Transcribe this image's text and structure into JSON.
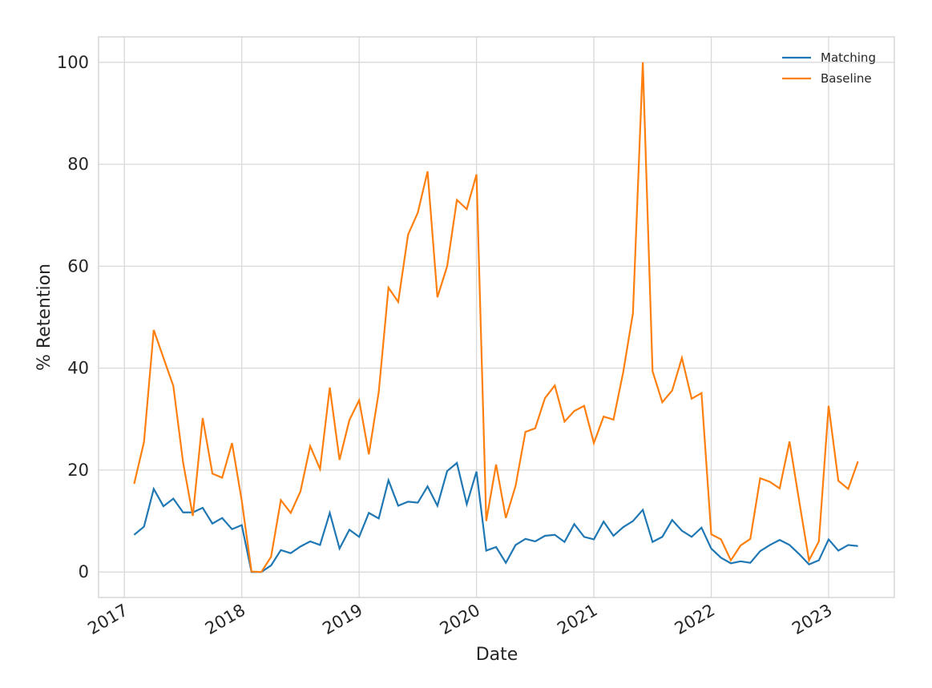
{
  "chart_data": {
    "type": "line",
    "x_label": "Date",
    "y_label": "% Retention",
    "x": [
      2017.083,
      2017.167,
      2017.25,
      2017.333,
      2017.417,
      2017.5,
      2017.583,
      2017.667,
      2017.75,
      2017.833,
      2017.917,
      2018.0,
      2018.083,
      2018.167,
      2018.25,
      2018.333,
      2018.417,
      2018.5,
      2018.583,
      2018.667,
      2018.75,
      2018.833,
      2018.917,
      2019.0,
      2019.083,
      2019.167,
      2019.25,
      2019.333,
      2019.417,
      2019.5,
      2019.583,
      2019.667,
      2019.75,
      2019.833,
      2019.917,
      2020.0,
      2020.083,
      2020.167,
      2020.25,
      2020.333,
      2020.417,
      2020.5,
      2020.583,
      2020.667,
      2020.75,
      2020.833,
      2020.917,
      2021.0,
      2021.083,
      2021.167,
      2021.25,
      2021.333,
      2021.417,
      2021.5,
      2021.583,
      2021.667,
      2021.75,
      2021.833,
      2021.917,
      2022.0,
      2022.083,
      2022.167,
      2022.25,
      2022.333,
      2022.417,
      2022.5,
      2022.583,
      2022.667,
      2022.75,
      2022.833,
      2022.917,
      2023.0,
      2023.083,
      2023.167,
      2023.25
    ],
    "series": [
      {
        "name": "Matching",
        "color": "#1f77b4",
        "values": [
          7.3,
          8.9,
          16.3,
          12.9,
          14.4,
          11.7,
          11.7,
          12.6,
          9.5,
          10.6,
          8.4,
          9.2,
          0,
          0,
          1.3,
          4.3,
          3.7,
          5,
          6,
          5.3,
          11.6,
          4.6,
          8.3,
          6.9,
          11.6,
          10.5,
          18,
          13,
          13.8,
          13.6,
          16.8,
          13,
          19.8,
          21.4,
          13.3,
          19.7,
          4.2,
          4.9,
          1.8,
          5.3,
          6.5,
          6,
          7.1,
          7.3,
          5.9,
          9.4,
          6.9,
          6.4,
          9.9,
          7.1,
          8.8,
          10,
          12.2,
          5.9,
          6.9,
          10.2,
          8.1,
          6.9,
          8.7,
          4.6,
          2.8,
          1.7,
          2.1,
          1.8,
          4.1,
          5.3,
          6.3,
          5.3,
          3.5,
          1.5,
          2.3,
          6.4,
          4.2,
          5.3,
          5.1
        ]
      },
      {
        "name": "Baseline",
        "color": "#ff7f0e",
        "values": [
          17.3,
          25.5,
          47.5,
          42,
          36.5,
          21.5,
          11,
          30.2,
          19.3,
          18.5,
          25.3,
          14,
          0.1,
          0,
          3,
          14.1,
          11.6,
          15.8,
          24.7,
          20.2,
          36.2,
          22,
          29.8,
          33.7,
          23.1,
          35.3,
          55.8,
          53,
          66.2,
          70.5,
          78.6,
          53.9,
          60,
          73,
          71.2,
          78,
          10,
          21.1,
          10.6,
          16.9,
          27.5,
          28.2,
          34.1,
          36.6,
          29.5,
          31.6,
          32.6,
          25.3,
          30.5,
          29.9,
          39.2,
          50.8,
          100,
          39.4,
          33.3,
          35.6,
          42,
          34,
          35.1,
          7.4,
          6.4,
          2.3,
          5.2,
          6.5,
          18.4,
          17.7,
          16.4,
          25.6,
          13.8,
          2.3,
          6,
          32.6,
          17.9,
          16.3,
          21.7
        ]
      }
    ],
    "xlim": [
      2016.78,
      2023.56
    ],
    "xticks": [
      2017,
      2018,
      2019,
      2020,
      2021,
      2022,
      2023
    ],
    "ylim": [
      -5,
      105
    ],
    "yticks": [
      0,
      20,
      40,
      60,
      80,
      100
    ],
    "grid": true,
    "legend": "upper right"
  }
}
